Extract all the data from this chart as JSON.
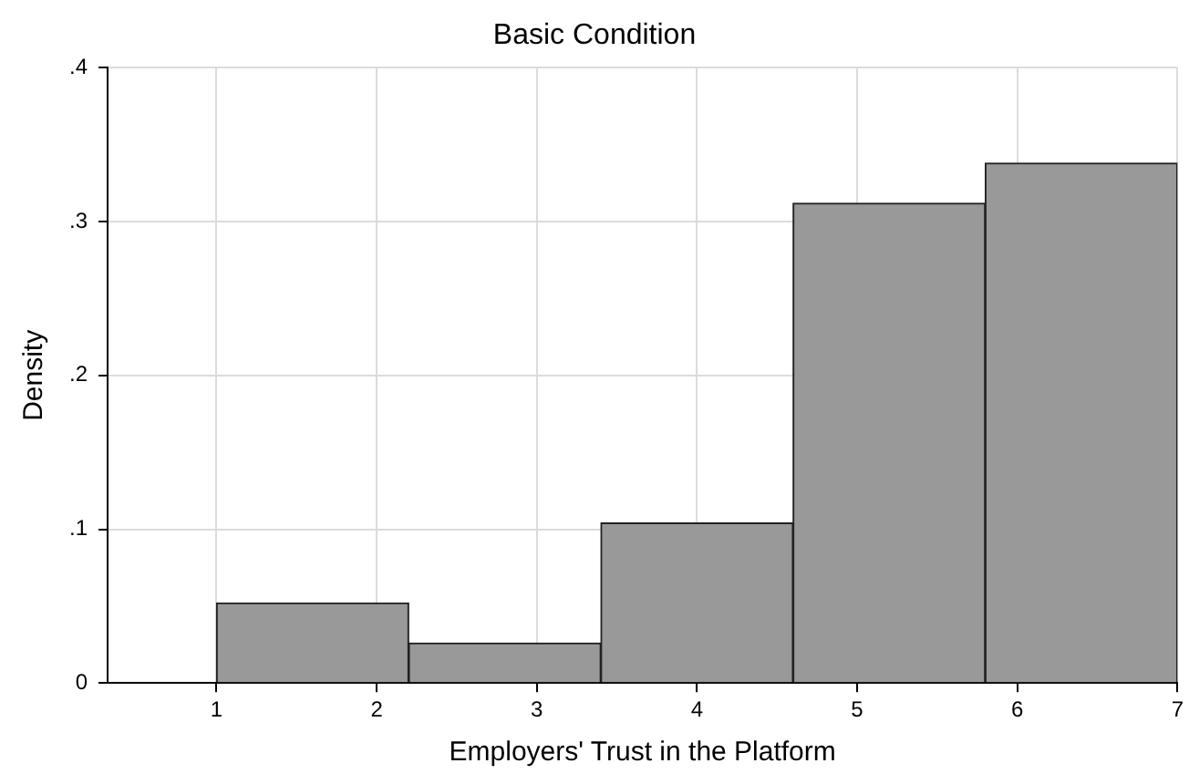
{
  "chart_data": {
    "type": "histogram",
    "title": "Basic Condition",
    "xlabel": "Employers' Trust in the Platform",
    "ylabel": "Density",
    "bins": [
      1,
      2.2,
      3.4,
      4.6,
      5.8,
      7
    ],
    "values": [
      0.052,
      0.026,
      0.104,
      0.312,
      0.338
    ],
    "color": "#999999",
    "xlim": [
      0.32,
      7
    ],
    "xticks": [
      1,
      2,
      3,
      4,
      5,
      6,
      7
    ],
    "ylim": [
      0,
      0.4
    ],
    "yticks": [
      {
        "value": 0,
        "label": "0"
      },
      {
        "value": 0.1,
        "label": ".1"
      },
      {
        "value": 0.2,
        "label": ".2"
      },
      {
        "value": 0.3,
        "label": ".3"
      },
      {
        "value": 0.4,
        "label": ".4"
      }
    ],
    "grid": true,
    "legend": false
  }
}
